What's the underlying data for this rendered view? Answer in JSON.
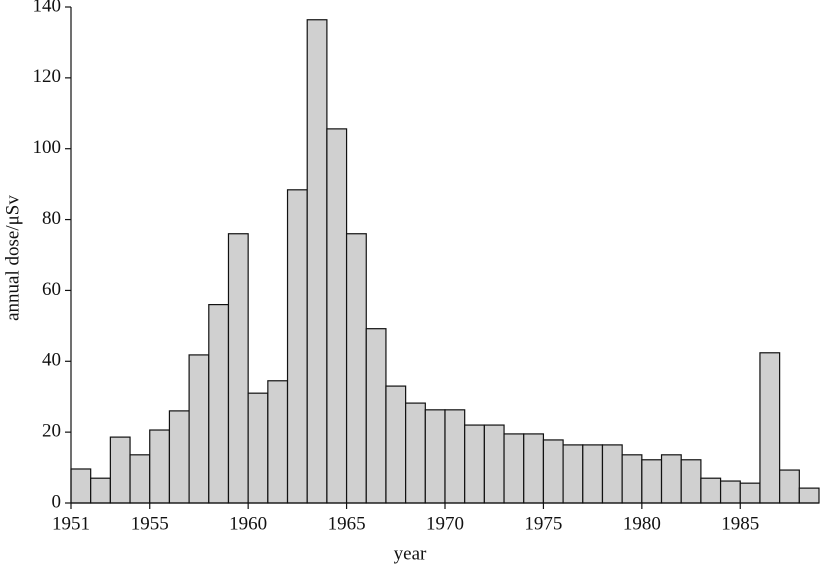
{
  "chart_data": {
    "type": "histogram",
    "xlabel": "year",
    "ylabel": "annual dose/μSv",
    "bins": [
      1951,
      1952,
      1953,
      1954,
      1955,
      1956,
      1957,
      1958,
      1959,
      1960,
      1961,
      1962,
      1963,
      1964,
      1965,
      1966,
      1967,
      1968,
      1969,
      1970,
      1971,
      1972,
      1973,
      1974,
      1975,
      1976,
      1977,
      1978,
      1979,
      1980,
      1981,
      1982,
      1983,
      1984,
      1985,
      1986,
      1987,
      1988,
      1989
    ],
    "values": [
      9.6,
      7,
      18.6,
      13.6,
      20.6,
      26,
      41.8,
      56,
      76,
      31,
      34.5,
      88.4,
      136.4,
      105.6,
      76,
      49.2,
      33,
      28.2,
      26.3,
      26.3,
      22,
      22,
      19.5,
      19.5,
      17.8,
      16.4,
      16.4,
      16.4,
      13.6,
      12.2,
      13.6,
      12.2,
      7,
      6.2,
      5.6,
      42.4,
      9.3,
      4.2
    ],
    "color": "#d0d0d0",
    "xlim": [
      1951,
      1989
    ],
    "xticks": [
      1951,
      1955,
      1960,
      1965,
      1970,
      1975,
      1980,
      1985
    ],
    "ylim": [
      0,
      140
    ],
    "yticks": [
      0,
      20,
      40,
      60,
      80,
      100,
      120,
      140
    ]
  }
}
